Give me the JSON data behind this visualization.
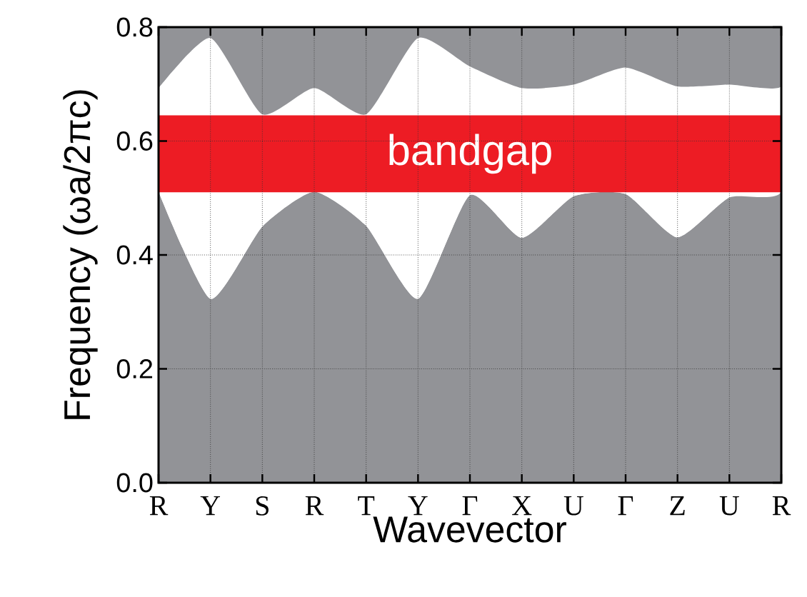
{
  "chart_data": {
    "type": "area",
    "stacked": true,
    "xlabel": "Wavevector",
    "ylabel": "Frequency (ωa/2πc)",
    "categories": [
      "R",
      "Y",
      "S",
      "R",
      "T",
      "Y",
      "Γ",
      "X",
      "U",
      "Γ",
      "Z",
      "U",
      "R"
    ],
    "series": [
      {
        "color": "#929397",
        "values": [
          0.511,
          0.323,
          0.45,
          0.511,
          0.451,
          0.323,
          0.505,
          0.43,
          0.503,
          0.507,
          0.431,
          0.501,
          0.511
        ]
      },
      {
        "color": "#ffffff",
        "values": [
          0.182,
          0.458,
          0.197,
          0.182,
          0.196,
          0.458,
          0.226,
          0.263,
          0.196,
          0.222,
          0.265,
          0.198,
          0.185
        ]
      },
      {
        "color": "#929397",
        "values": [
          0.107,
          0.019,
          0.153,
          0.107,
          0.153,
          0.019,
          0.069,
          0.107,
          0.101,
          0.071,
          0.104,
          0.101,
          0.104
        ]
      }
    ],
    "bands": [
      {
        "axis": "y",
        "from": 0.51,
        "to": 0.645,
        "label": "bandgap",
        "color": "#ed1c24"
      }
    ],
    "ylim": [
      0,
      0.8
    ],
    "yticks": [
      {
        "value": 0,
        "label": "0.0"
      },
      0.2,
      0.4,
      0.6,
      0.8
    ],
    "grid": true
  }
}
